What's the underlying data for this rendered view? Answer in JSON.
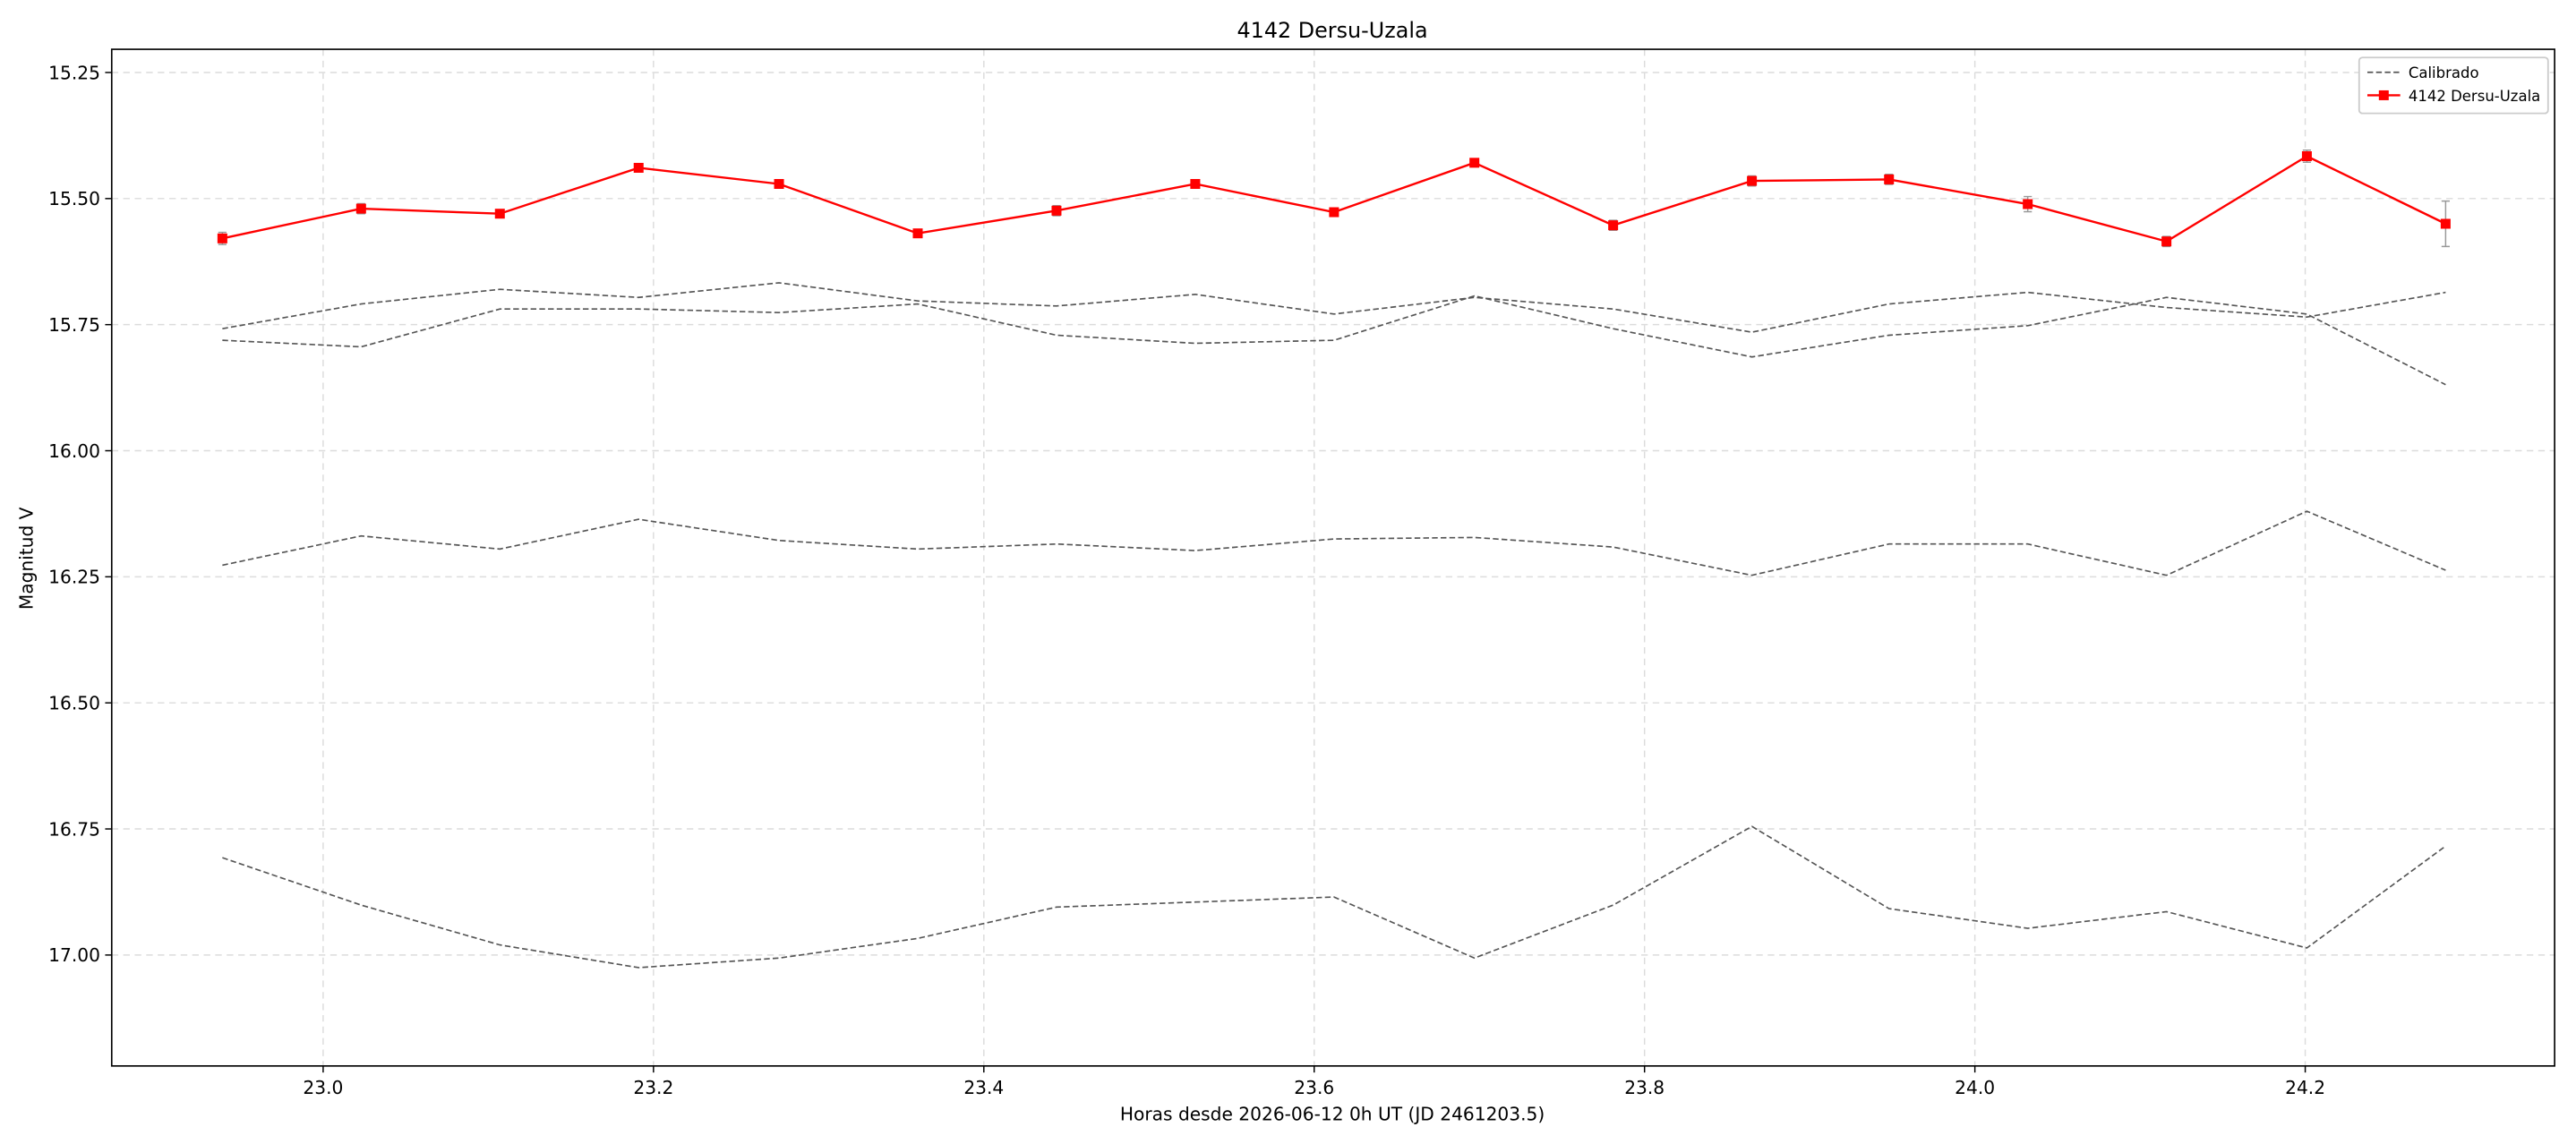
{
  "chart_data": {
    "type": "line",
    "title": "4142 Dersu-Uzala",
    "xlabel": "Horas desde 2026-06-12 0h UT (JD 2461203.5)",
    "ylabel": "Magnitud V",
    "x": [
      22.939,
      23.023,
      23.107,
      23.191,
      23.276,
      23.36,
      23.444,
      23.528,
      23.612,
      23.697,
      23.781,
      23.865,
      23.948,
      24.032,
      24.116,
      24.201,
      24.285
    ],
    "series": [
      {
        "name": "Calibrado",
        "color": "#555555",
        "style": "dashed",
        "values": [
          15.758,
          15.709,
          15.68,
          15.696,
          15.667,
          15.703,
          15.713,
          15.69,
          15.729,
          15.696,
          15.719,
          15.765,
          15.709,
          15.686,
          15.716,
          15.735,
          15.686
        ]
      },
      {
        "color": "#555555",
        "style": "dashed",
        "values": [
          15.781,
          15.794,
          15.719,
          15.719,
          15.726,
          15.709,
          15.771,
          15.787,
          15.781,
          15.693,
          15.758,
          15.814,
          15.771,
          15.752,
          15.696,
          15.729,
          15.869
        ]
      },
      {
        "color": "#555555",
        "style": "dashed",
        "values": [
          16.227,
          16.169,
          16.195,
          16.136,
          16.178,
          16.195,
          16.185,
          16.198,
          16.175,
          16.172,
          16.191,
          16.247,
          16.185,
          16.185,
          16.247,
          16.12,
          16.237
        ]
      },
      {
        "color": "#555555",
        "style": "dashed",
        "values": [
          16.807,
          16.901,
          16.98,
          17.025,
          17.006,
          16.967,
          16.905,
          16.895,
          16.885,
          17.006,
          16.901,
          16.745,
          16.908,
          16.947,
          16.914,
          16.986,
          16.784
        ]
      },
      {
        "name": "4142 Dersu-Uzala",
        "color": "#ff0000",
        "style": "solid",
        "marker": "square",
        "values": [
          15.579,
          15.52,
          15.53,
          15.439,
          15.471,
          15.569,
          15.524,
          15.471,
          15.527,
          15.429,
          15.553,
          15.465,
          15.462,
          15.511,
          15.585,
          15.416,
          15.55
        ],
        "errors": [
          0.012,
          0.01,
          0.008,
          0.008,
          0.008,
          0.008,
          0.01,
          0.008,
          0.008,
          0.008,
          0.01,
          0.01,
          0.01,
          0.015,
          0.01,
          0.012,
          0.045
        ]
      }
    ],
    "xlim": [
      22.872,
      24.351
    ],
    "xticks": [
      {
        "value": 23.0,
        "label": "23.0"
      },
      23.2,
      23.4,
      23.6,
      23.8,
      {
        "value": 24.0,
        "label": "24.0"
      },
      24.2
    ],
    "ylim": [
      17.22,
      15.204
    ],
    "yticks": [
      15.25,
      {
        "value": 15.5,
        "label": "15.50"
      },
      15.75,
      {
        "value": 16.0,
        "label": "16.00"
      },
      16.25,
      {
        "value": 16.5,
        "label": "16.50"
      },
      16.75,
      {
        "value": 17.0,
        "label": "17.00"
      }
    ],
    "grid": true,
    "legend": "upper right"
  }
}
